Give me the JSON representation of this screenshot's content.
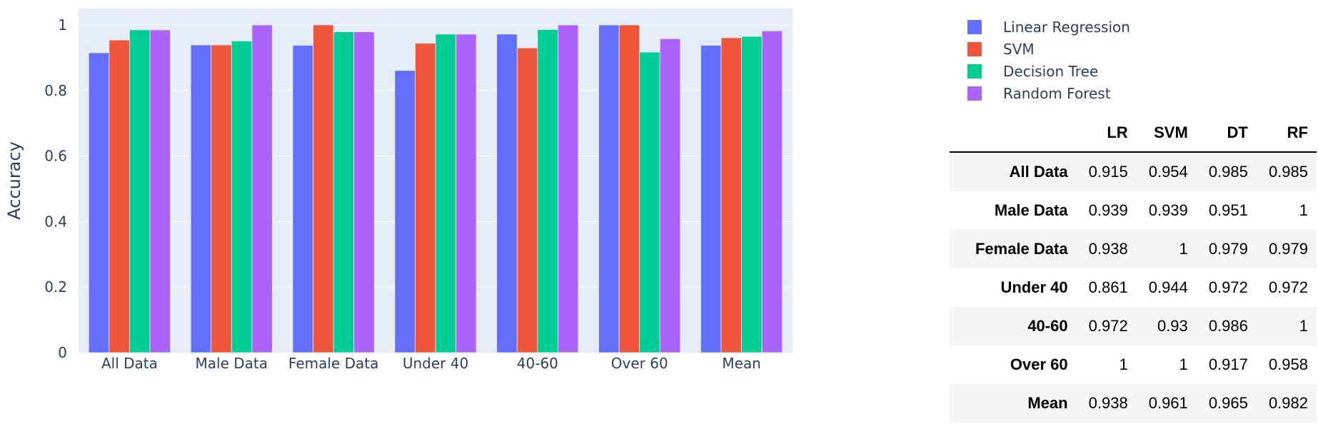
{
  "chart_data": {
    "type": "bar",
    "categories": [
      "All Data",
      "Male Data",
      "Female Data",
      "Under 40",
      "40-60",
      "Over 60",
      "Mean"
    ],
    "series": [
      {
        "name": "Linear Regression",
        "color": "#636efa",
        "values": [
          0.915,
          0.939,
          0.938,
          0.861,
          0.972,
          1,
          0.938
        ]
      },
      {
        "name": "SVM",
        "color": "#ef553b",
        "values": [
          0.954,
          0.939,
          1,
          0.944,
          0.93,
          1,
          0.961
        ]
      },
      {
        "name": "Decision Tree",
        "color": "#00cc96",
        "values": [
          0.985,
          0.951,
          0.979,
          0.972,
          0.986,
          0.917,
          0.965
        ]
      },
      {
        "name": "Random Forest",
        "color": "#ab63fa",
        "values": [
          0.985,
          1,
          0.979,
          0.972,
          1,
          0.958,
          0.982
        ]
      }
    ],
    "ylabel": "Accuracy",
    "xlabel": "",
    "ylim": [
      0,
      1.05
    ],
    "yticks": [
      0,
      0.2,
      0.4,
      0.6,
      0.8,
      1
    ],
    "ytick_labels": [
      "0",
      "0.2",
      "0.4",
      "0.6",
      "0.8",
      "1"
    ],
    "grid": true,
    "legend_position": "top-right",
    "plot_background": "#e5ecf6"
  },
  "table": {
    "headers": [
      "",
      "LR",
      "SVM",
      "DT",
      "RF"
    ],
    "rows": [
      {
        "label": "All Data",
        "values": [
          "0.915",
          "0.954",
          "0.985",
          "0.985"
        ]
      },
      {
        "label": "Male Data",
        "values": [
          "0.939",
          "0.939",
          "0.951",
          "1"
        ]
      },
      {
        "label": "Female Data",
        "values": [
          "0.938",
          "1",
          "0.979",
          "0.979"
        ]
      },
      {
        "label": "Under 40",
        "values": [
          "0.861",
          "0.944",
          "0.972",
          "0.972"
        ]
      },
      {
        "label": "40-60",
        "values": [
          "0.972",
          "0.93",
          "0.986",
          "1"
        ]
      },
      {
        "label": "Over 60",
        "values": [
          "1",
          "1",
          "0.917",
          "0.958"
        ]
      },
      {
        "label": "Mean",
        "values": [
          "0.938",
          "0.961",
          "0.965",
          "0.982"
        ]
      }
    ]
  }
}
